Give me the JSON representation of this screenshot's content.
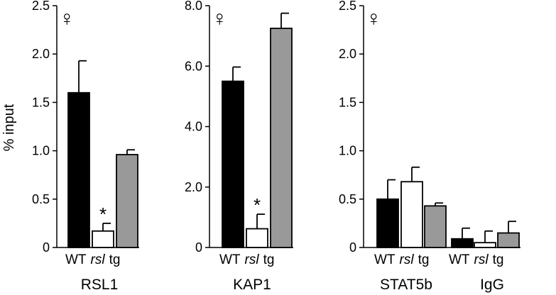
{
  "ylabel": "% input",
  "female_symbol": "♀",
  "significance_mark": "*",
  "genotype_labels": [
    "WT",
    "rsl",
    "tg"
  ],
  "colors": {
    "WT": "#000000",
    "rsl": "#ffffff",
    "tg": "#999999"
  },
  "chart_data": [
    {
      "type": "bar",
      "panel": "RSL1",
      "ylim": [
        0,
        2.5
      ],
      "yticks": [
        "0",
        "0.5",
        "1.0",
        "1.5",
        "2.0",
        "2.5"
      ],
      "groups": [
        {
          "label": "RSL1",
          "values": [
            1.6,
            0.17,
            0.96
          ],
          "errors": [
            0.33,
            0.08,
            0.05
          ],
          "significant": [
            false,
            true,
            false
          ]
        }
      ]
    },
    {
      "type": "bar",
      "panel": "KAP1",
      "ylim": [
        0,
        8.0
      ],
      "yticks": [
        "0",
        "2.0",
        "4.0",
        "6.0",
        "8.0"
      ],
      "groups": [
        {
          "label": "KAP1",
          "values": [
            5.5,
            0.62,
            7.25
          ],
          "errors": [
            0.47,
            0.48,
            0.5
          ],
          "significant": [
            false,
            true,
            false
          ]
        }
      ]
    },
    {
      "type": "bar",
      "panel": "STAT5b / IgG",
      "ylim": [
        0,
        2.5
      ],
      "yticks": [
        "0",
        "0.5",
        "1.0",
        "1.5",
        "2.0",
        "2.5"
      ],
      "groups": [
        {
          "label": "STAT5b",
          "values": [
            0.5,
            0.68,
            0.43
          ],
          "errors": [
            0.2,
            0.15,
            0.03
          ],
          "significant": [
            false,
            false,
            false
          ]
        },
        {
          "label": "IgG",
          "values": [
            0.09,
            0.05,
            0.15
          ],
          "errors": [
            0.11,
            0.12,
            0.12
          ],
          "significant": [
            false,
            false,
            false
          ]
        }
      ]
    }
  ]
}
